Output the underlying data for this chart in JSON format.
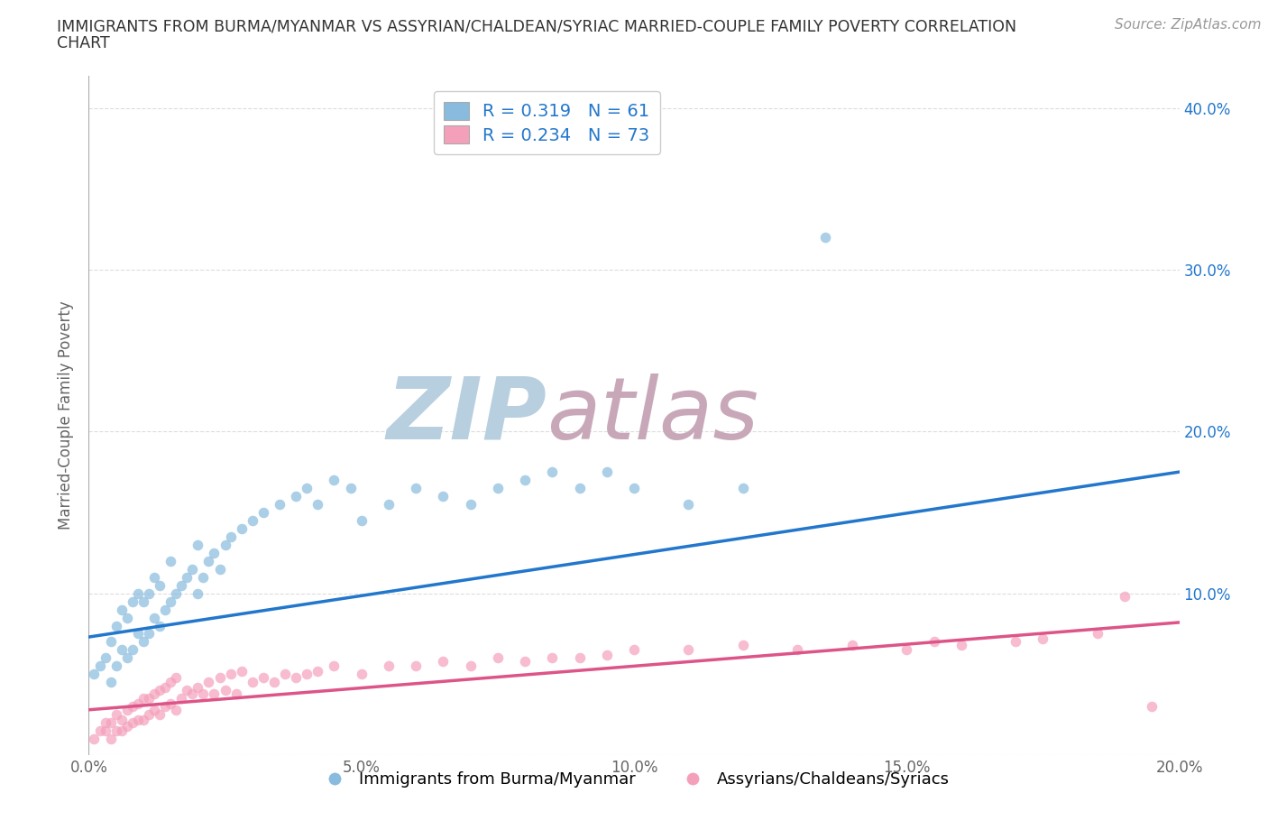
{
  "title_line1": "IMMIGRANTS FROM BURMA/MYANMAR VS ASSYRIAN/CHALDEAN/SYRIAC MARRIED-COUPLE FAMILY POVERTY CORRELATION",
  "title_line2": "CHART",
  "source_text": "Source: ZipAtlas.com",
  "ylabel": "Married-Couple Family Poverty",
  "xlim": [
    0.0,
    0.2
  ],
  "ylim": [
    0.0,
    0.42
  ],
  "xticks": [
    0.0,
    0.05,
    0.1,
    0.15,
    0.2
  ],
  "xtick_labels": [
    "0.0%",
    "5.0%",
    "10.0%",
    "15.0%",
    "20.0%"
  ],
  "yticks": [
    0.0,
    0.1,
    0.2,
    0.3,
    0.4
  ],
  "ytick_labels_right": [
    "",
    "10.0%",
    "20.0%",
    "30.0%",
    "40.0%"
  ],
  "blue_color": "#88bbdd",
  "pink_color": "#f4a0bb",
  "blue_line_color": "#2277cc",
  "pink_line_color": "#dd5588",
  "watermark_color_zip": "#b8cfe0",
  "watermark_color_atlas": "#c8a8b8",
  "R_blue": 0.319,
  "N_blue": 61,
  "R_pink": 0.234,
  "N_pink": 73,
  "legend_label_blue": "Immigrants from Burma/Myanmar",
  "legend_label_pink": "Assyrians/Chaldeans/Syriacs",
  "blue_line_start_y": 0.073,
  "blue_line_end_y": 0.175,
  "pink_line_start_y": 0.028,
  "pink_line_end_y": 0.082,
  "blue_scatter_x": [
    0.001,
    0.002,
    0.003,
    0.004,
    0.004,
    0.005,
    0.005,
    0.006,
    0.006,
    0.007,
    0.007,
    0.008,
    0.008,
    0.009,
    0.009,
    0.01,
    0.01,
    0.011,
    0.011,
    0.012,
    0.012,
    0.013,
    0.013,
    0.014,
    0.015,
    0.015,
    0.016,
    0.017,
    0.018,
    0.019,
    0.02,
    0.02,
    0.021,
    0.022,
    0.023,
    0.024,
    0.025,
    0.026,
    0.028,
    0.03,
    0.032,
    0.035,
    0.038,
    0.04,
    0.042,
    0.045,
    0.048,
    0.05,
    0.055,
    0.06,
    0.065,
    0.07,
    0.075,
    0.08,
    0.085,
    0.09,
    0.095,
    0.1,
    0.11,
    0.12,
    0.135
  ],
  "blue_scatter_y": [
    0.05,
    0.055,
    0.06,
    0.045,
    0.07,
    0.055,
    0.08,
    0.065,
    0.09,
    0.06,
    0.085,
    0.065,
    0.095,
    0.075,
    0.1,
    0.07,
    0.095,
    0.075,
    0.1,
    0.085,
    0.11,
    0.08,
    0.105,
    0.09,
    0.095,
    0.12,
    0.1,
    0.105,
    0.11,
    0.115,
    0.1,
    0.13,
    0.11,
    0.12,
    0.125,
    0.115,
    0.13,
    0.135,
    0.14,
    0.145,
    0.15,
    0.155,
    0.16,
    0.165,
    0.155,
    0.17,
    0.165,
    0.145,
    0.155,
    0.165,
    0.16,
    0.155,
    0.165,
    0.17,
    0.175,
    0.165,
    0.175,
    0.165,
    0.155,
    0.165,
    0.32
  ],
  "pink_scatter_x": [
    0.001,
    0.002,
    0.003,
    0.003,
    0.004,
    0.004,
    0.005,
    0.005,
    0.006,
    0.006,
    0.007,
    0.007,
    0.008,
    0.008,
    0.009,
    0.009,
    0.01,
    0.01,
    0.011,
    0.011,
    0.012,
    0.012,
    0.013,
    0.013,
    0.014,
    0.014,
    0.015,
    0.015,
    0.016,
    0.016,
    0.017,
    0.018,
    0.019,
    0.02,
    0.021,
    0.022,
    0.023,
    0.024,
    0.025,
    0.026,
    0.027,
    0.028,
    0.03,
    0.032,
    0.034,
    0.036,
    0.038,
    0.04,
    0.042,
    0.045,
    0.05,
    0.055,
    0.06,
    0.065,
    0.07,
    0.075,
    0.08,
    0.085,
    0.09,
    0.095,
    0.1,
    0.11,
    0.12,
    0.13,
    0.14,
    0.15,
    0.155,
    0.16,
    0.17,
    0.175,
    0.185,
    0.19,
    0.195
  ],
  "pink_scatter_y": [
    0.01,
    0.015,
    0.015,
    0.02,
    0.01,
    0.02,
    0.015,
    0.025,
    0.015,
    0.022,
    0.018,
    0.028,
    0.02,
    0.03,
    0.022,
    0.032,
    0.022,
    0.035,
    0.025,
    0.035,
    0.028,
    0.038,
    0.025,
    0.04,
    0.03,
    0.042,
    0.032,
    0.045,
    0.028,
    0.048,
    0.035,
    0.04,
    0.038,
    0.042,
    0.038,
    0.045,
    0.038,
    0.048,
    0.04,
    0.05,
    0.038,
    0.052,
    0.045,
    0.048,
    0.045,
    0.05,
    0.048,
    0.05,
    0.052,
    0.055,
    0.05,
    0.055,
    0.055,
    0.058,
    0.055,
    0.06,
    0.058,
    0.06,
    0.06,
    0.062,
    0.065,
    0.065,
    0.068,
    0.065,
    0.068,
    0.065,
    0.07,
    0.068,
    0.07,
    0.072,
    0.075,
    0.098,
    0.03
  ],
  "background_color": "#ffffff",
  "grid_color": "#dddddd"
}
